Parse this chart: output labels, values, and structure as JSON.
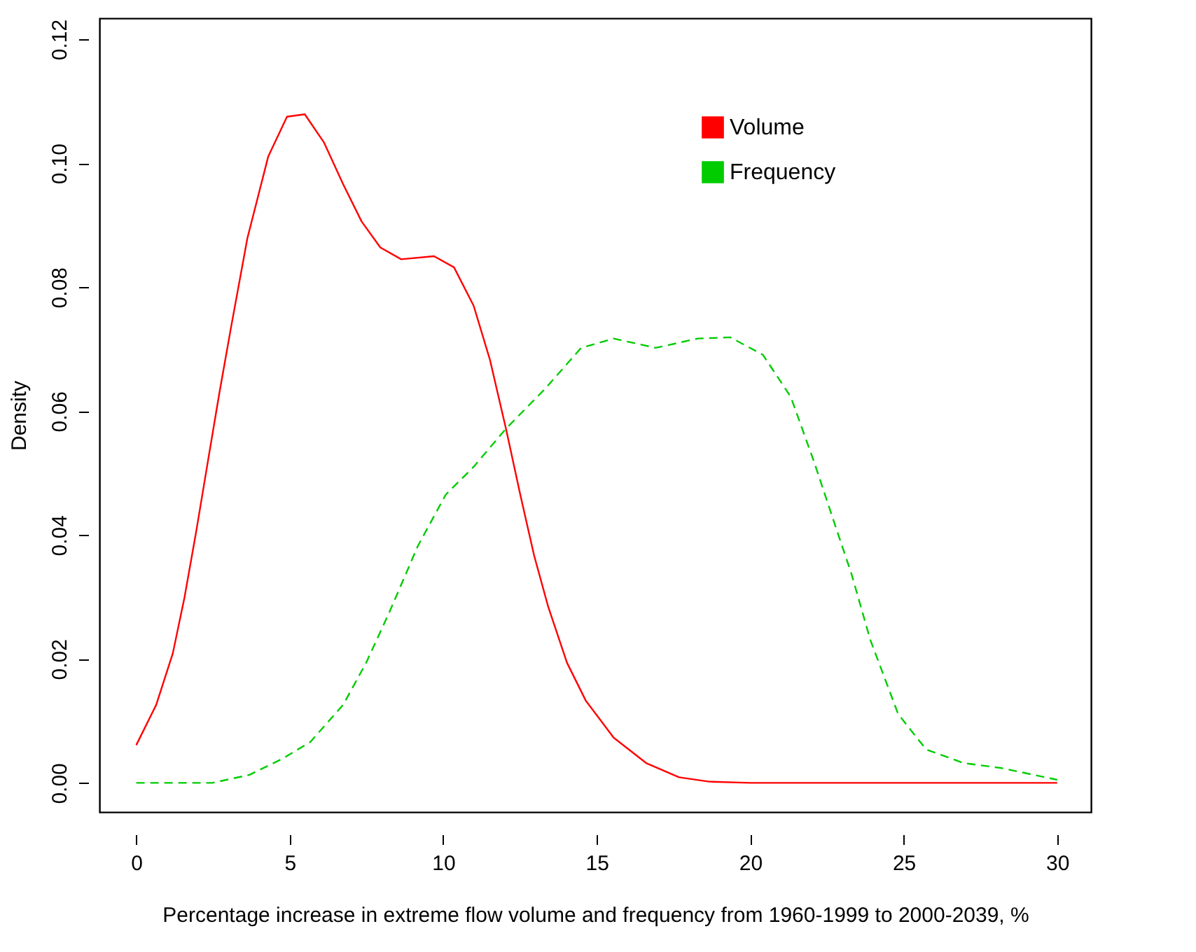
{
  "chart_data": {
    "type": "line",
    "xlabel": "Percentage increase in extreme flow volume and frequency from 1960-1999 to 2000-2039, %",
    "ylabel": "Density",
    "xlim": [
      -1.2,
      31.1
    ],
    "ylim": [
      -0.0047,
      0.1234
    ],
    "xticks": [
      0,
      5,
      10,
      15,
      20,
      25,
      30
    ],
    "yticks": [
      {
        "value": 0,
        "label": "0.00"
      },
      {
        "value": 0.02,
        "label": "0.02"
      },
      {
        "value": 0.04,
        "label": "0.04"
      },
      {
        "value": 0.06,
        "label": "0.06"
      },
      {
        "value": 0.08,
        "label": "0.08"
      },
      {
        "value": 0.1,
        "label": "0.10"
      },
      {
        "value": 0.12,
        "label": "0.12"
      }
    ],
    "grid": false,
    "legend": "top right",
    "series": [
      {
        "name": "Volume",
        "color": "#ff0000",
        "line_style": "solid",
        "x": [
          0,
          0.65,
          1.19,
          1.57,
          1.95,
          2.33,
          2.71,
          3.09,
          3.62,
          4.3,
          4.91,
          5.49,
          6.12,
          6.74,
          7.34,
          7.95,
          8.63,
          9.7,
          10.35,
          10.99,
          11.52,
          12.05,
          12.51,
          12.96,
          13.42,
          14.03,
          14.64,
          15.55,
          16.61,
          17.68,
          18.66,
          20,
          25,
          30
        ],
        "values": [
          0.0061,
          0.0126,
          0.0209,
          0.0299,
          0.0405,
          0.0518,
          0.063,
          0.0736,
          0.0879,
          0.1011,
          0.1075,
          0.1079,
          0.1033,
          0.0966,
          0.0906,
          0.0864,
          0.0845,
          0.085,
          0.0832,
          0.077,
          0.0683,
          0.057,
          0.0465,
          0.0367,
          0.0284,
          0.0194,
          0.0133,
          0.0073,
          0.0032,
          0.0009,
          0.0002,
          0,
          0,
          0
        ]
      },
      {
        "name": "Frequency",
        "color": "#00cc00",
        "line_style": "dashed",
        "x": [
          0,
          2.48,
          3.69,
          4.76,
          5.67,
          6.74,
          7.49,
          8.25,
          9.17,
          10.08,
          10.99,
          12.05,
          13.3,
          14.49,
          15.55,
          16.92,
          18.29,
          19.35,
          20.41,
          21.32,
          22.08,
          22.69,
          23.3,
          23.91,
          24.82,
          25.73,
          26.95,
          28.17,
          30
        ],
        "values": [
          0,
          0,
          0.0013,
          0.0039,
          0.0066,
          0.0126,
          0.0194,
          0.0276,
          0.0382,
          0.0465,
          0.051,
          0.0572,
          0.0635,
          0.0702,
          0.0717,
          0.0702,
          0.0717,
          0.0719,
          0.0691,
          0.0623,
          0.0518,
          0.0427,
          0.0337,
          0.0231,
          0.0111,
          0.0054,
          0.0032,
          0.0024,
          0.0005
        ]
      }
    ]
  }
}
